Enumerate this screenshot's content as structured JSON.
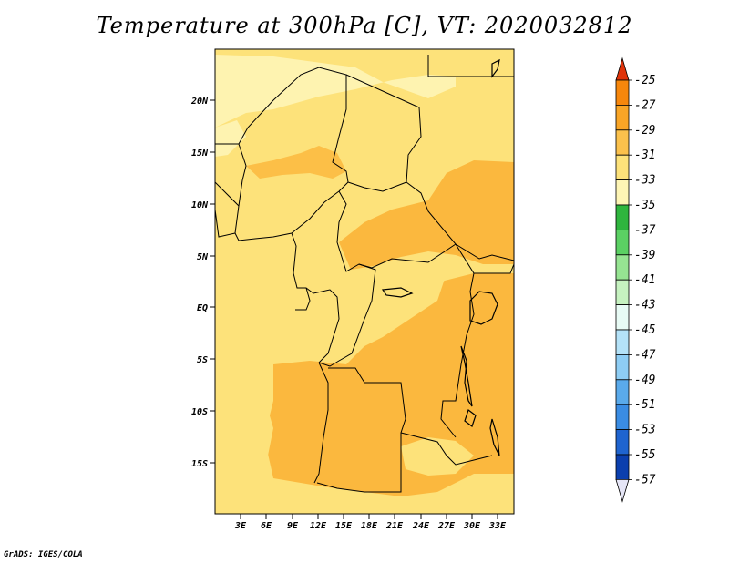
{
  "title": "Temperature at 300hPa [C], VT: 2020032812",
  "credit": "GrADS: IGES/COLA",
  "map": {
    "lat_ticks": [
      "20N",
      "15N",
      "10N",
      "5N",
      "EQ",
      "5S",
      "10S",
      "15S"
    ],
    "lon_ticks": [
      "3E",
      "6E",
      "9E",
      "12E",
      "15E",
      "18E",
      "21E",
      "24E",
      "27E",
      "30E",
      "33E"
    ],
    "field_colors": {
      "-33_-31": "#fde27a",
      "-31_-29": "#fbb83e",
      "-35_-33": "#fef3b0"
    }
  },
  "colorbar": {
    "labels": [
      "-25",
      "-27",
      "-29",
      "-31",
      "-33",
      "-35",
      "-37",
      "-39",
      "-41",
      "-43",
      "-45",
      "-47",
      "-49",
      "-51",
      "-53",
      "-55",
      "-57"
    ],
    "colors": [
      "#e8520b",
      "#f7870c",
      "#f9a526",
      "#fbc14c",
      "#fde27a",
      "#fef5b5",
      "#2fb53e",
      "#5bd063",
      "#96e492",
      "#c6f2c0",
      "#e8fbf5",
      "#b4e2f8",
      "#8ecdf4",
      "#5aaaeb",
      "#3a8ce3",
      "#1f64cf",
      "#0b3fae",
      "#0a1a6e"
    ],
    "top_arrow_color": "#e0330a",
    "bottom_arrow_color": "#e6e6f7"
  }
}
